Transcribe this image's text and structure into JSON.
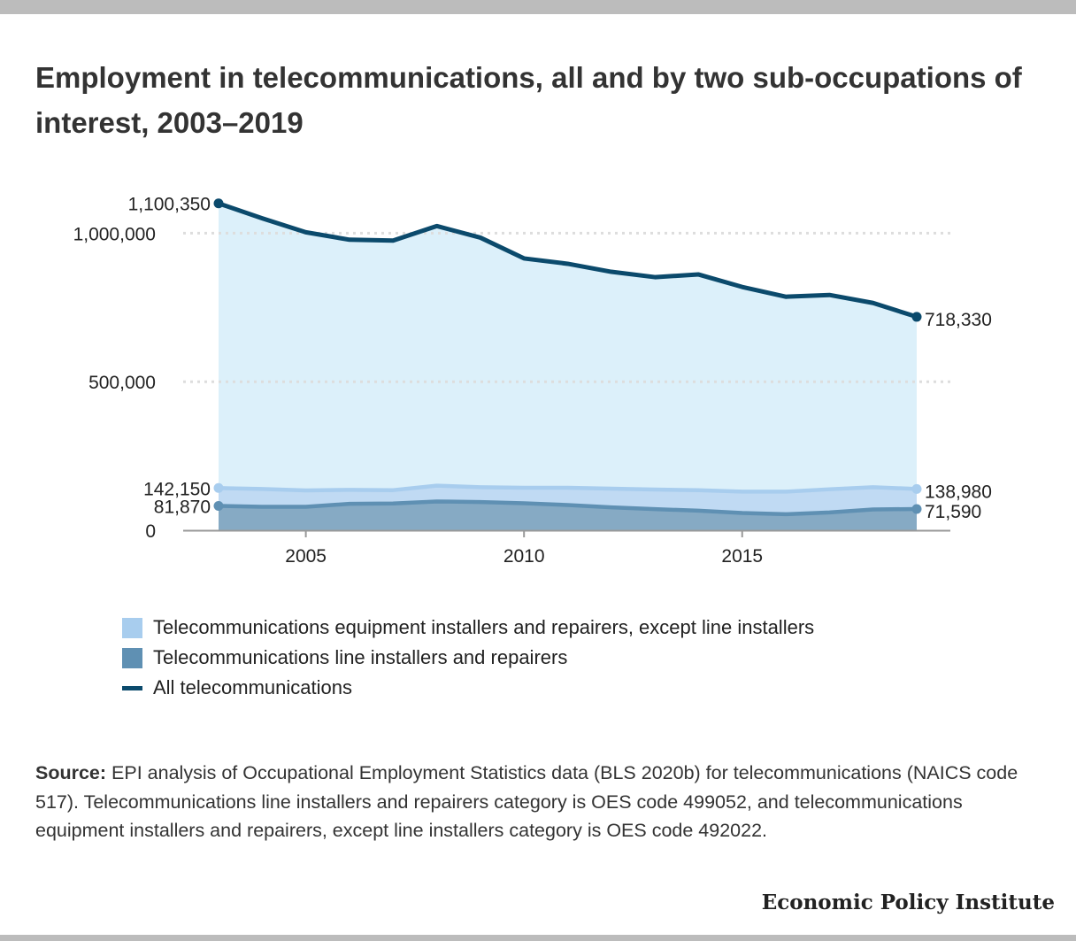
{
  "title": "Employment in telecommunications, all and by two sub-occupations of interest, 2003–2019",
  "legend": [
    {
      "label": "Telecommunications equipment installers and repairers, except line installers",
      "color": "#a8cdee",
      "kind": "box"
    },
    {
      "label": "Telecommunications line installers and repairers",
      "color": "#5f90b3",
      "kind": "box"
    },
    {
      "label": "All telecommunications",
      "color": "#0b4a6c",
      "kind": "line"
    }
  ],
  "source": {
    "label": "Source:",
    "text": "EPI analysis of Occupational Employment Statistics data (BLS 2020b) for telecommunications (NAICS code 517). Telecommunications line installers and repairers category is OES code 499052, and telecommunications equipment installers and repairers, except line installers category is OES code 492022."
  },
  "brand": "Economic Policy Institute",
  "chart_data": {
    "type": "area",
    "x": [
      2003,
      2004,
      2005,
      2006,
      2007,
      2008,
      2009,
      2010,
      2011,
      2012,
      2013,
      2014,
      2015,
      2016,
      2017,
      2018,
      2019
    ],
    "xticks": [
      2005,
      2010,
      2015
    ],
    "xtick_labels": [
      "2005",
      "2010",
      "2015"
    ],
    "yticks": [
      0,
      500000,
      1000000
    ],
    "ytick_labels": [
      "0",
      "500,000",
      "1,000,000"
    ],
    "ylim": [
      0,
      1100350
    ],
    "grid": true,
    "series": [
      {
        "name": "All telecommunications",
        "color": "#0b4a6c",
        "fill": "#dcf0fa",
        "values": [
          1100350,
          1050000,
          1003000,
          978000,
          975000,
          1024000,
          985000,
          915000,
          897000,
          870000,
          852000,
          861000,
          819000,
          786000,
          792000,
          765000,
          718330
        ],
        "start_label": "1,100,350",
        "end_label": "718,330"
      },
      {
        "name": "Telecommunications equipment installers and repairers, except line installers",
        "color": "#a8cdee",
        "fill": "#c0daf3",
        "values": [
          142150,
          139000,
          134000,
          136000,
          135000,
          150000,
          145000,
          143000,
          143000,
          140000,
          137000,
          135000,
          130000,
          130000,
          138000,
          145000,
          138980
        ],
        "start_label": "142,150",
        "end_label": "138,980"
      },
      {
        "name": "Telecommunications line installers and repairers",
        "color": "#5f90b3",
        "fill": "#86aac4",
        "values": [
          81870,
          79000,
          79000,
          89000,
          90000,
          97000,
          95000,
          91000,
          85000,
          77000,
          71000,
          66000,
          58000,
          54000,
          60000,
          70000,
          71590
        ],
        "start_label": "81,870",
        "end_label": "71,590"
      }
    ]
  }
}
